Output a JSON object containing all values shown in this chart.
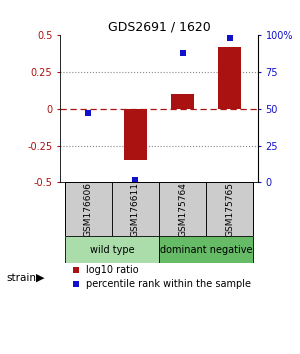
{
  "title": "GDS2691 / 1620",
  "samples": [
    "GSM176606",
    "GSM176611",
    "GSM175764",
    "GSM175765"
  ],
  "log10_ratio": [
    0.0,
    -0.35,
    0.1,
    0.42
  ],
  "percentile_rank": [
    47,
    2,
    88,
    98
  ],
  "groups": [
    {
      "label": "wild type",
      "samples": [
        0,
        1
      ],
      "color": "#aaddaa"
    },
    {
      "label": "dominant negative",
      "samples": [
        2,
        3
      ],
      "color": "#66bb66"
    }
  ],
  "bar_color": "#aa1111",
  "dot_color": "#1111cc",
  "ylim_left": [
    -0.5,
    0.5
  ],
  "ylim_right": [
    0,
    100
  ],
  "yticks_left": [
    -0.5,
    -0.25,
    0.0,
    0.25,
    0.5
  ],
  "yticks_right": [
    0,
    25,
    50,
    75,
    100
  ],
  "ytick_labels_left": [
    "-0.5",
    "-0.25",
    "0",
    "0.25",
    "0.5"
  ],
  "ytick_labels_right": [
    "0",
    "25",
    "50",
    "75",
    "100%"
  ],
  "background_color": "#ffffff",
  "sample_box_color": "#cccccc",
  "strain_label": "strain",
  "legend_red_label": "log10 ratio",
  "legend_blue_label": "percentile rank within the sample"
}
